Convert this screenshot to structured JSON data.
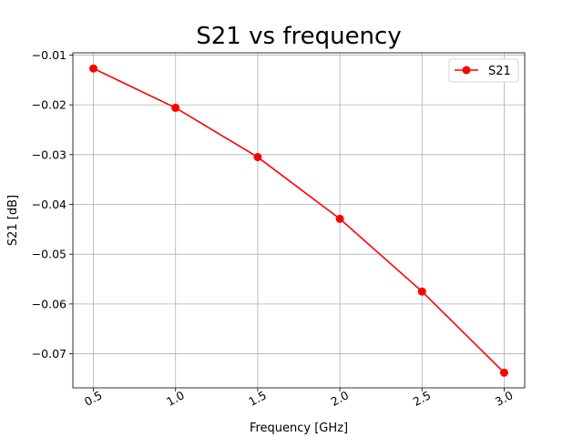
{
  "chart_data": {
    "type": "line",
    "title": "S21 vs frequency",
    "xlabel": "Frequency [GHz]",
    "ylabel": "S21 [dB]",
    "x": [
      0.5,
      1.0,
      1.5,
      2.0,
      2.5,
      3.0
    ],
    "series": [
      {
        "name": "S21",
        "values": [
          -0.0127,
          -0.0206,
          -0.0305,
          -0.0429,
          -0.0575,
          -0.0738
        ],
        "color": "#ff0000",
        "marker": "circle"
      }
    ],
    "xticks": [
      "0.5",
      "1.0",
      "1.5",
      "2.0",
      "2.5",
      "3.0"
    ],
    "xtick_values": [
      0.5,
      1.0,
      1.5,
      2.0,
      2.5,
      3.0
    ],
    "yticks": [
      "−0.01",
      "−0.02",
      "−0.03",
      "−0.04",
      "−0.05",
      "−0.06",
      "−0.07"
    ],
    "ytick_values": [
      -0.01,
      -0.02,
      -0.03,
      -0.04,
      -0.05,
      -0.06,
      -0.07
    ],
    "xlim": [
      0.375,
      3.125
    ],
    "ylim": [
      -0.07685,
      -0.00955
    ],
    "grid": true,
    "legend": "top-right",
    "xtick_rotation": "rotated"
  }
}
